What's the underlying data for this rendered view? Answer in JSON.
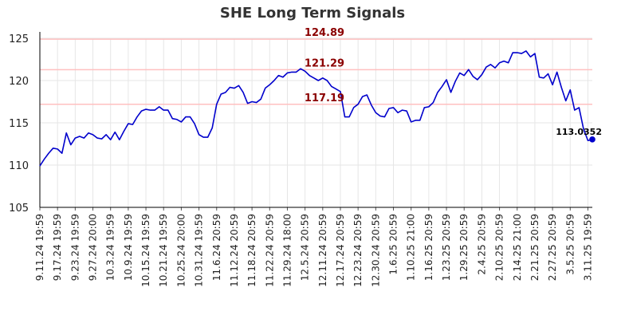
{
  "chart_data": {
    "type": "line",
    "title": "SHE Long Term Signals",
    "xlabel": "",
    "ylabel": "",
    "ylim": [
      105,
      125
    ],
    "yticks": [
      105,
      110,
      115,
      120,
      125
    ],
    "grid": true,
    "legend": "none",
    "x_tick_labels": [
      "9.11.24 19:59",
      "9.17.24 19:59",
      "9.23.24 19:59",
      "9.27.24 20:00",
      "10.3.24 19:59",
      "10.9.24 19:59",
      "10.15.24 19:59",
      "10.21.24 19:59",
      "10.25.24 20:00",
      "10.31.24 19:59",
      "11.6.24 20:59",
      "11.12.24 20:59",
      "11.18.24 20:59",
      "11.22.24 20:59",
      "11.29.24 18:00",
      "12.5.24 20:59",
      "12.11.24 20:59",
      "12.17.24 20:59",
      "12.23.24 20:59",
      "12.30.24 20:59",
      "1.6.25 20:59",
      "1.10.25 21:00",
      "1.16.25 20:59",
      "1.23.25 20:59",
      "1.29.25 20:59",
      "2.4.25 20:59",
      "2.10.25 20:59",
      "2.14.25 21:00",
      "2.21.25 20:59",
      "2.27.25 20:59",
      "3.5.25 20:59",
      "3.11.25 19:59"
    ],
    "tick_every": 4,
    "series": [
      {
        "color": "#0000cc",
        "values": [
          109.9,
          110.7,
          111.4,
          112.0,
          111.9,
          111.4,
          113.8,
          112.4,
          113.2,
          113.4,
          113.2,
          113.8,
          113.6,
          113.2,
          113.1,
          113.6,
          113.0,
          113.9,
          113.0,
          114.0,
          114.9,
          114.8,
          115.7,
          116.4,
          116.6,
          116.5,
          116.5,
          116.9,
          116.5,
          116.5,
          115.5,
          115.4,
          115.1,
          115.7,
          115.7,
          114.9,
          113.6,
          113.3,
          113.3,
          114.4,
          117.2,
          118.4,
          118.6,
          119.2,
          119.1,
          119.4,
          118.6,
          117.3,
          117.5,
          117.4,
          117.8,
          119.1,
          119.5,
          120.0,
          120.6,
          120.4,
          120.9,
          121.0,
          121.0,
          121.4,
          121.1,
          120.6,
          120.3,
          120.0,
          120.3,
          120.0,
          119.3,
          119.0,
          118.7,
          115.7,
          115.7,
          116.8,
          117.2,
          118.1,
          118.3,
          117.1,
          116.2,
          115.8,
          115.7,
          116.7,
          116.8,
          116.2,
          116.5,
          116.4,
          115.1,
          115.3,
          115.3,
          116.8,
          116.9,
          117.4,
          118.6,
          119.3,
          120.1,
          118.6,
          119.9,
          120.9,
          120.6,
          121.3,
          120.5,
          120.1,
          120.7,
          121.6,
          121.9,
          121.5,
          122.1,
          122.3,
          122.1,
          123.3,
          123.3,
          123.2,
          123.5,
          122.8,
          123.2,
          120.4,
          120.3,
          120.8,
          119.5,
          121.0,
          119.2,
          117.6,
          118.9,
          116.5,
          116.8,
          114.3,
          112.9,
          113.0352
        ]
      }
    ],
    "reference_lines": [
      {
        "value": 124.89,
        "label": "124.89",
        "color": "#ffc0c0"
      },
      {
        "value": 121.29,
        "label": "121.29",
        "color": "#ffc0c0"
      },
      {
        "value": 117.19,
        "label": "117.19",
        "color": "#ffc0c0"
      }
    ],
    "reference_label_color": "#8b0000",
    "last_value_label": "113.0352",
    "axis_color": "#000000",
    "grid_color": "#e6e6e6"
  }
}
